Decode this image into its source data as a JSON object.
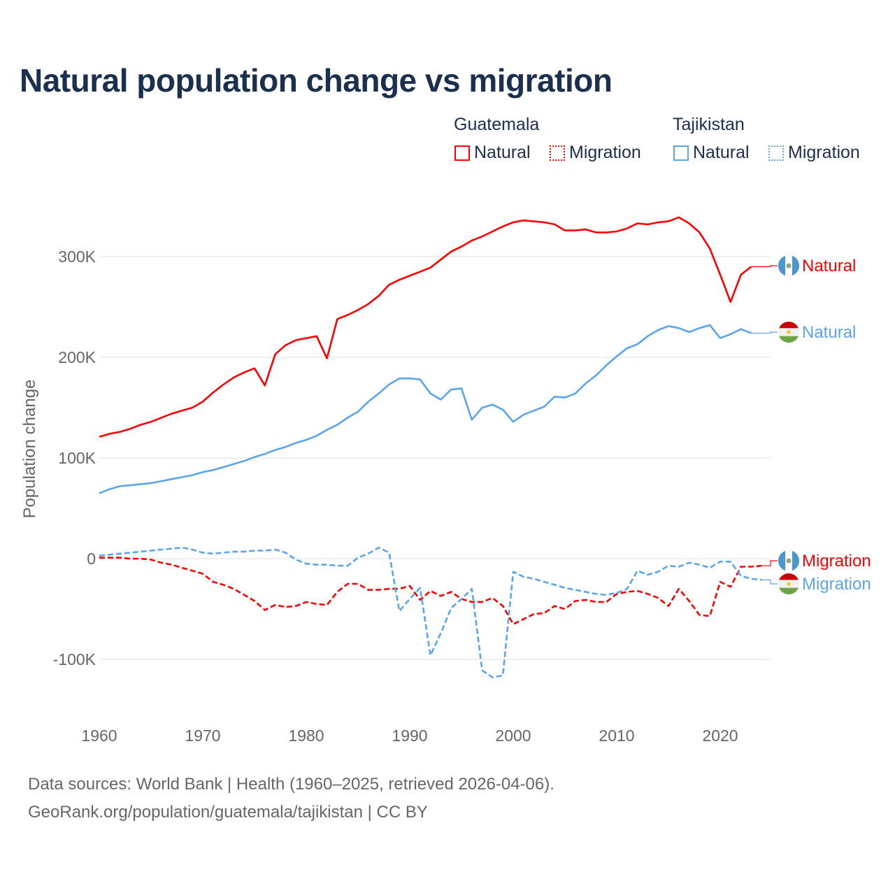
{
  "title": "Natural population change vs migration",
  "legend": {
    "groups": [
      {
        "name": "Guatemala",
        "color": "#ff0000",
        "items": [
          "Natural",
          "Migration"
        ]
      },
      {
        "name": "Tajikistan",
        "color": "#5aa5ec",
        "items": [
          "Natural",
          "Migration"
        ]
      }
    ]
  },
  "footer": {
    "line1": "Data sources: World Bank | Health (1960–2025, retrieved 2026-04-06).",
    "line2": "GeoRank.org/population/guatemala/tajikistan | CC BY"
  },
  "chart_data": {
    "type": "line",
    "title": "Natural population change vs migration",
    "xlabel": "",
    "ylabel": "Population change",
    "xlim": [
      1960,
      2025
    ],
    "ylim": [
      -150000,
      350000
    ],
    "x_ticks": [
      "1960",
      "1970",
      "1980",
      "1990",
      "2000",
      "2010",
      "2020"
    ],
    "y_ticks": [
      {
        "v": 300,
        "label": "300K"
      },
      {
        "v": 200,
        "label": "200K"
      },
      {
        "v": 100,
        "label": "100K"
      },
      {
        "v": 0,
        "label": "0"
      },
      {
        "v": -100,
        "label": "-100K"
      }
    ],
    "units": "thousands",
    "grid": true,
    "legend_position": "top-right",
    "series": [
      {
        "name": "Guatemala Natural",
        "end_label": "Natural",
        "country": "guatemala",
        "color": "#ff0000",
        "dash": "solid",
        "start_year": 1960,
        "values": [
          121,
          124,
          126,
          129,
          133,
          136,
          140,
          144,
          147,
          150,
          156,
          165,
          173,
          180,
          185,
          189,
          172,
          203,
          212,
          217,
          219,
          221,
          199,
          238,
          242,
          247,
          253,
          261,
          272,
          277,
          281,
          285,
          289,
          297,
          305,
          310,
          316,
          320,
          325,
          330,
          334,
          336,
          335,
          334,
          332,
          326,
          326,
          327,
          324,
          324,
          325,
          328,
          333,
          332,
          334,
          335,
          339,
          333,
          324,
          308,
          282,
          255,
          282,
          290
        ]
      },
      {
        "name": "Tajikistan Natural",
        "end_label": "Natural",
        "country": "tajikistan",
        "color": "#5aa5ec",
        "dash": "solid",
        "start_year": 1960,
        "values": [
          65,
          69,
          72,
          73,
          74,
          75,
          77,
          79,
          81,
          83,
          86,
          88,
          91,
          94,
          97,
          101,
          104,
          108,
          111,
          115,
          118,
          122,
          128,
          133,
          140,
          146,
          156,
          164,
          173,
          179,
          179,
          178,
          164,
          158,
          168,
          169,
          138,
          150,
          153,
          148,
          136,
          143,
          147,
          151,
          161,
          160,
          164,
          174,
          182,
          192,
          201,
          209,
          213,
          221,
          227,
          231,
          229,
          225,
          229,
          232,
          219,
          223,
          228,
          224
        ]
      },
      {
        "name": "Guatemala Migration",
        "end_label": "Migration",
        "country": "guatemala",
        "color": "#ff0000",
        "dash": "dashed",
        "start_year": 1960,
        "values": [
          1,
          1,
          1,
          0,
          0,
          -1,
          -4,
          -6,
          -9,
          -12,
          -15,
          -23,
          -26,
          -30,
          -36,
          -42,
          -51,
          -46,
          -48,
          -47,
          -43,
          -45,
          -46,
          -33,
          -25,
          -25,
          -31,
          -31,
          -30,
          -30,
          -27,
          -41,
          -32,
          -37,
          -33,
          -40,
          -43,
          -43,
          -39,
          -47,
          -65,
          -60,
          -55,
          -54,
          -47,
          -50,
          -42,
          -41,
          -43,
          -43,
          -35,
          -33,
          -32,
          -35,
          -39,
          -47,
          -30,
          -42,
          -56,
          -57,
          -23,
          -28,
          -8,
          -8,
          -7
        ]
      },
      {
        "name": "Tajikistan Migration",
        "end_label": "Migration",
        "country": "tajikistan",
        "color": "#5aa5ec",
        "dash": "dashed",
        "start_year": 1960,
        "values": [
          3,
          4,
          5,
          6,
          7,
          8,
          9,
          10,
          11,
          9,
          6,
          5,
          6,
          7,
          7,
          8,
          8,
          9,
          6,
          -1,
          -5,
          -6,
          -6,
          -7,
          -7,
          1,
          5,
          11,
          6,
          -52,
          -40,
          -29,
          -96,
          -74,
          -49,
          -40,
          -30,
          -111,
          -118,
          -116,
          -13,
          -18,
          -20,
          -23,
          -26,
          -29,
          -31,
          -33,
          -35,
          -36,
          -34,
          -30,
          -12,
          -16,
          -13,
          -7,
          -8,
          -4,
          -6,
          -9,
          -3,
          -3,
          -17,
          -20,
          -21
        ]
      }
    ]
  }
}
